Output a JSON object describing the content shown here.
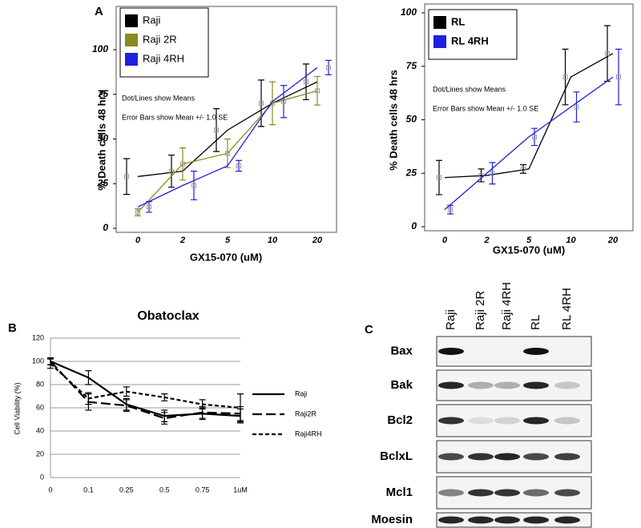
{
  "panel_labels": [
    "A",
    "B",
    "C"
  ],
  "chart_data": [
    {
      "type": "line",
      "x_label": "GX15-070 (uM)",
      "y_label": "% Death cells 48 hrs",
      "categories": [
        "0",
        "2",
        "5",
        "10",
        "20"
      ],
      "ylim": [
        0,
        100
      ],
      "yticks": [
        0,
        25,
        50,
        75,
        100
      ],
      "legend": "top-left",
      "annotations": [
        "Dot/Lines show Means",
        "Error Bars show Mean +/- 1.0 SE"
      ],
      "series": [
        {
          "name": "Raji",
          "color": "#000000",
          "values": [
            29,
            32,
            55,
            70,
            82
          ],
          "errors": [
            10,
            9,
            12,
            13,
            10
          ]
        },
        {
          "name": "Raji 2R",
          "color": "#8a8a1e",
          "values": [
            9,
            36,
            42,
            70,
            77
          ],
          "errors": [
            2,
            9,
            8,
            12,
            8
          ]
        },
        {
          "name": "Raji 4RH",
          "color": "#1f1fe0",
          "values": [
            12,
            24,
            35,
            71,
            90
          ],
          "errors": [
            3,
            8,
            3,
            9,
            4
          ]
        }
      ]
    },
    {
      "type": "line",
      "x_label": "GX15-070 (uM)",
      "y_label": "% Death cells 48 hrs",
      "categories": [
        "0",
        "2",
        "5",
        "10",
        "20"
      ],
      "ylim": [
        0,
        100
      ],
      "yticks": [
        0,
        25,
        50,
        75,
        100
      ],
      "legend": "top-left",
      "annotations": [
        "Dot/Lines show Means",
        "Error Bars show Mean +/- 1.0 SE"
      ],
      "series": [
        {
          "name": "RL",
          "color": "#000000",
          "values": [
            23,
            24,
            27,
            70,
            81
          ],
          "errors": [
            8,
            3,
            2,
            13,
            13
          ]
        },
        {
          "name": "RL 4RH",
          "color": "#1f1fe0",
          "values": [
            8,
            25,
            42,
            56,
            70
          ],
          "errors": [
            2,
            5,
            4,
            7,
            13
          ]
        }
      ]
    },
    {
      "type": "line",
      "title": "Obatoclax",
      "y_label": "Cell Viability (%)",
      "categories": [
        "0",
        "0.1",
        "0.25",
        "0.5",
        "0.75",
        "1uM"
      ],
      "ylim": [
        0,
        120
      ],
      "yticks": [
        0,
        20,
        40,
        60,
        80,
        100,
        120
      ],
      "grid": true,
      "legend": "right",
      "series": [
        {
          "name": "Raji",
          "color": "#000000",
          "dash": "solid",
          "values": [
            100,
            86,
            63,
            53,
            55,
            53
          ],
          "errors": [
            3,
            6,
            5,
            5,
            5,
            6
          ]
        },
        {
          "name": "Raji2R",
          "color": "#000000",
          "dash": "long-dash",
          "values": [
            100,
            65,
            62,
            51,
            56,
            55
          ],
          "errors": [
            3,
            7,
            5,
            5,
            5,
            6
          ]
        },
        {
          "name": "Raji4RH",
          "color": "#000000",
          "dash": "short-dash",
          "values": [
            98,
            68,
            74,
            69,
            63,
            60
          ],
          "errors": [
            4,
            5,
            4,
            3,
            4,
            12
          ]
        }
      ]
    }
  ],
  "blot": {
    "lanes": [
      "Raji",
      "Raji 2R",
      "Raji 4RH",
      "RL",
      "RL 4RH"
    ],
    "proteins": [
      "Bax",
      "Bak",
      "Bcl2",
      "BclxL",
      "Mcl1",
      "Moesin"
    ]
  }
}
